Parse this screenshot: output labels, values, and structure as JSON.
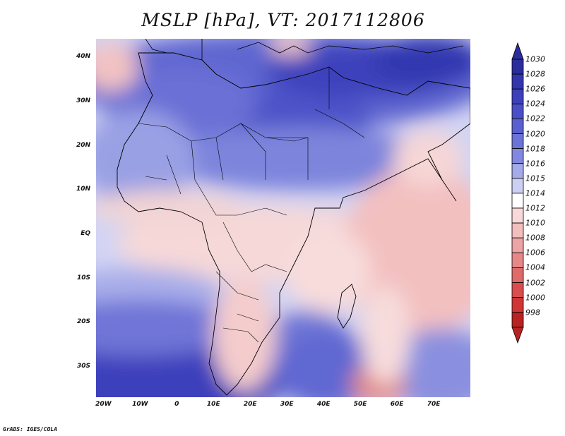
{
  "title": "MSLP [hPa], VT: 2017112806",
  "credit": "GrADS: IGES/COLA",
  "map": {
    "lat_labels": [
      "40N",
      "30N",
      "20N",
      "10N",
      "EQ",
      "10S",
      "20S",
      "30S"
    ],
    "lat_values": [
      40,
      30,
      20,
      10,
      0,
      -10,
      -20,
      -30
    ],
    "lon_labels": [
      "20W",
      "10W",
      "0",
      "10E",
      "20E",
      "30E",
      "40E",
      "50E",
      "60E",
      "70E"
    ],
    "lon_values": [
      -20,
      -10,
      0,
      10,
      20,
      30,
      40,
      50,
      60,
      70
    ],
    "lon_range": [
      -22,
      80
    ],
    "lat_range": [
      -37,
      44
    ]
  },
  "colorbar": {
    "levels": [
      "1030",
      "1028",
      "1026",
      "1024",
      "1022",
      "1020",
      "1018",
      "1016",
      "1015",
      "1014",
      "1012",
      "1010",
      "1008",
      "1006",
      "1004",
      "1002",
      "1000",
      "998"
    ],
    "colors": [
      "#2b2c9e",
      "#3335ad",
      "#3d40bb",
      "#4a4fc7",
      "#5a60cf",
      "#6c73d7",
      "#8288df",
      "#a5aae9",
      "#cdd0f3",
      "#ffffff",
      "#f8d8d8",
      "#f2bebe",
      "#eca4a4",
      "#e68888",
      "#df6a6a",
      "#d84d4d",
      "#cf3535",
      "#b82222"
    ]
  }
}
